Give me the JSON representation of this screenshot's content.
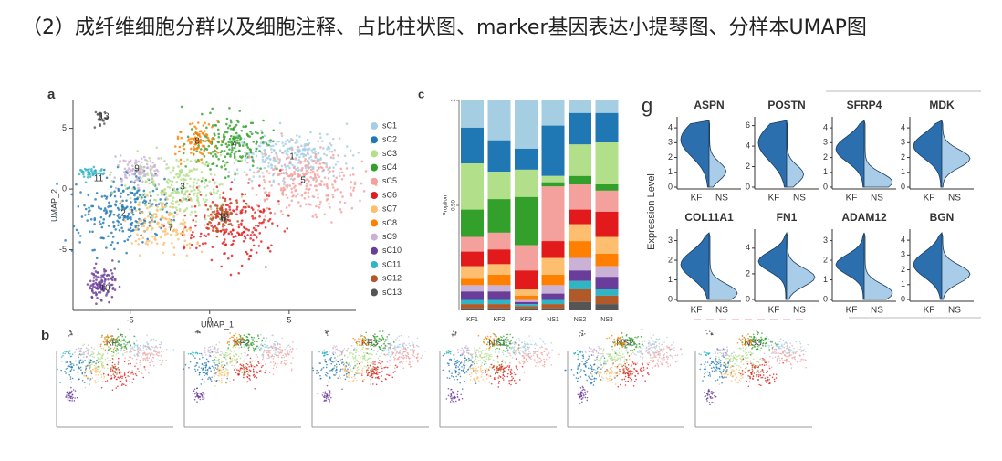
{
  "heading": "（2）成纤维细胞分群以及细胞注释、占比柱状图、marker基因表达小提琴图、分样本UMAP图",
  "panel_a": {
    "label": "a",
    "x_label": "UMAP_1",
    "y_label": "UMAP_2",
    "xlim": [
      -8.6,
      9.2
    ],
    "ylim": [
      -10,
      7.3
    ],
    "xticks": [
      -5,
      0,
      5
    ],
    "yticks": [
      -5,
      0,
      5
    ],
    "legend": [
      {
        "name": "sC1",
        "cluster": "1",
        "color": "#a6cee3"
      },
      {
        "name": "sC2",
        "cluster": "2",
        "color": "#1f78b4"
      },
      {
        "name": "sC3",
        "cluster": "3",
        "color": "#b2df8a"
      },
      {
        "name": "sC4",
        "cluster": "4",
        "color": "#33a02c"
      },
      {
        "name": "sC5",
        "cluster": "5",
        "color": "#f4a09c"
      },
      {
        "name": "sC6",
        "cluster": "6",
        "color": "#e31a1c"
      },
      {
        "name": "sC7",
        "cluster": "7",
        "color": "#fdbf6f"
      },
      {
        "name": "sC8",
        "cluster": "8",
        "color": "#ff7f00"
      },
      {
        "name": "sC9",
        "cluster": "9",
        "color": "#cab2d6"
      },
      {
        "name": "sC10",
        "cluster": "10",
        "color": "#6a3d9a"
      },
      {
        "name": "sC11",
        "cluster": "11",
        "color": "#2fb5c4"
      },
      {
        "name": "sC12",
        "cluster": "12",
        "color": "#b15928"
      },
      {
        "name": "sC13",
        "cluster": "13",
        "color": "#555555"
      }
    ]
  },
  "panel_b": {
    "label": "b",
    "samples": [
      "KF1",
      "KF2",
      "KF3",
      "NS1",
      "NS2",
      "NS3"
    ]
  },
  "panel_c": {
    "label": "c",
    "y_label": "Proption",
    "ylim": [
      0,
      1
    ],
    "yticks": [
      {
        "value": 0.5,
        "label": "0.50"
      },
      1
    ],
    "bars": [
      {
        "category": "KF1",
        "values": [
          0.13,
          0.17,
          0.22,
          0.13,
          0.07,
          0.07,
          0.06,
          0.03,
          0.03,
          0.04,
          0.02,
          0.02,
          0.01
        ]
      },
      {
        "category": "KF2",
        "values": [
          0.19,
          0.15,
          0.13,
          0.16,
          0.08,
          0.07,
          0.05,
          0.05,
          0.03,
          0.04,
          0.02,
          0.02,
          0.01
        ]
      },
      {
        "category": "KF3",
        "values": [
          0.23,
          0.1,
          0.13,
          0.23,
          0.12,
          0.09,
          0.03,
          0.02,
          0.01,
          0.01,
          0.01,
          0.01,
          0.01
        ]
      },
      {
        "category": "NS1",
        "values": [
          0.12,
          0.24,
          0.03,
          0.02,
          0.26,
          0.08,
          0.08,
          0.05,
          0.04,
          0.03,
          0.02,
          0.02,
          0.01
        ]
      },
      {
        "category": "NS2",
        "values": [
          0.06,
          0.15,
          0.15,
          0.04,
          0.12,
          0.07,
          0.08,
          0.08,
          0.06,
          0.05,
          0.04,
          0.06,
          0.04
        ]
      },
      {
        "category": "NS3",
        "values": [
          0.06,
          0.14,
          0.2,
          0.03,
          0.1,
          0.12,
          0.08,
          0.06,
          0.05,
          0.06,
          0.03,
          0.04,
          0.03
        ]
      }
    ]
  },
  "panel_g": {
    "label": "g",
    "y_label": "Expression Level",
    "groups": [
      "KF",
      "NS"
    ],
    "genes": [
      {
        "name": "ASPN",
        "ylim": [
          0,
          4.5
        ],
        "yticks": [
          0,
          1,
          2,
          3,
          4
        ]
      },
      {
        "name": "POSTN",
        "ylim": [
          0,
          6.5
        ],
        "yticks": [
          0,
          2,
          4,
          6
        ]
      },
      {
        "name": "SFRP4",
        "ylim": [
          0,
          4.5
        ],
        "yticks": [
          0,
          1,
          2,
          3,
          4
        ]
      },
      {
        "name": "MDK",
        "ylim": [
          0,
          4.5
        ],
        "yticks": [
          0,
          1,
          2,
          3,
          4
        ]
      },
      {
        "name": "COL11A1",
        "ylim": [
          0,
          3.4
        ],
        "yticks": [
          0,
          1,
          2,
          3
        ]
      },
      {
        "name": "FN1",
        "ylim": [
          0,
          5.2
        ],
        "yticks": [
          0,
          2,
          4
        ]
      },
      {
        "name": "ADAM12",
        "ylim": [
          0,
          3.4
        ],
        "yticks": [
          0,
          1,
          2,
          3
        ]
      },
      {
        "name": "BGN",
        "ylim": [
          0,
          4.5
        ],
        "yticks": [
          0,
          1,
          2,
          3,
          4
        ]
      }
    ]
  }
}
